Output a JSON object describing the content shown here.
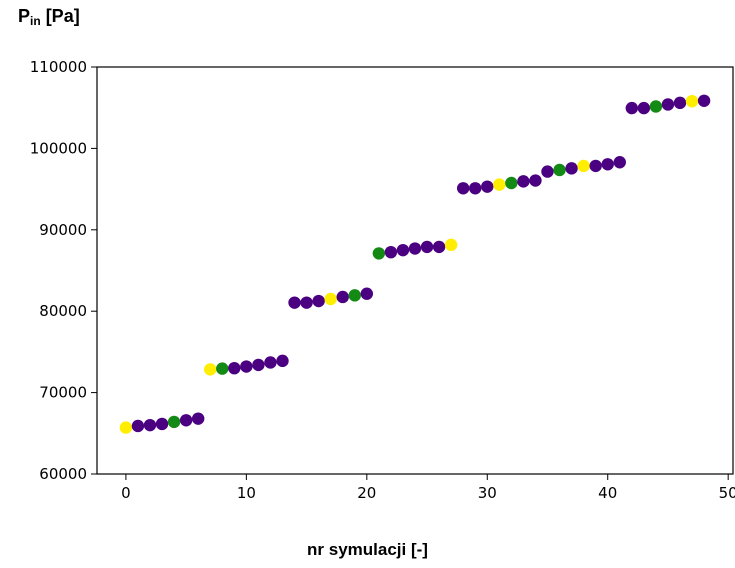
{
  "chart_data": {
    "type": "scatter",
    "ylabel_main": "P",
    "ylabel_sub": "in",
    "ylabel_unit": " [Pa]",
    "xlabel": "nr symulacji [-]",
    "xlim": [
      -2.4,
      50.4
    ],
    "ylim": [
      60000,
      110000
    ],
    "xticks": [
      "0",
      "10",
      "20",
      "30",
      "40",
      "50"
    ],
    "yticks": [
      "60000",
      "70000",
      "80000",
      "90000",
      "100000",
      "110000"
    ],
    "colors": {
      "yellow": "#ffee00",
      "green": "#138a13",
      "purple": "#4b0082"
    },
    "points": [
      {
        "x": 0,
        "y": 65700,
        "c": "yellow"
      },
      {
        "x": 1,
        "y": 65900,
        "c": "purple"
      },
      {
        "x": 2,
        "y": 66000,
        "c": "purple"
      },
      {
        "x": 3,
        "y": 66150,
        "c": "purple"
      },
      {
        "x": 4,
        "y": 66400,
        "c": "green"
      },
      {
        "x": 5,
        "y": 66600,
        "c": "purple"
      },
      {
        "x": 6,
        "y": 66800,
        "c": "purple"
      },
      {
        "x": 7,
        "y": 72850,
        "c": "yellow"
      },
      {
        "x": 8,
        "y": 72950,
        "c": "green"
      },
      {
        "x": 9,
        "y": 73000,
        "c": "purple"
      },
      {
        "x": 10,
        "y": 73200,
        "c": "purple"
      },
      {
        "x": 11,
        "y": 73400,
        "c": "purple"
      },
      {
        "x": 12,
        "y": 73700,
        "c": "purple"
      },
      {
        "x": 13,
        "y": 73900,
        "c": "purple"
      },
      {
        "x": 14,
        "y": 81050,
        "c": "purple"
      },
      {
        "x": 15,
        "y": 81050,
        "c": "purple"
      },
      {
        "x": 16,
        "y": 81250,
        "c": "purple"
      },
      {
        "x": 17,
        "y": 81500,
        "c": "yellow"
      },
      {
        "x": 18,
        "y": 81750,
        "c": "purple"
      },
      {
        "x": 19,
        "y": 81950,
        "c": "green"
      },
      {
        "x": 20,
        "y": 82150,
        "c": "purple"
      },
      {
        "x": 21,
        "y": 87100,
        "c": "green"
      },
      {
        "x": 22,
        "y": 87250,
        "c": "purple"
      },
      {
        "x": 23,
        "y": 87500,
        "c": "purple"
      },
      {
        "x": 24,
        "y": 87700,
        "c": "purple"
      },
      {
        "x": 25,
        "y": 87900,
        "c": "purple"
      },
      {
        "x": 26,
        "y": 87900,
        "c": "purple"
      },
      {
        "x": 27,
        "y": 88150,
        "c": "yellow"
      },
      {
        "x": 28,
        "y": 95100,
        "c": "purple"
      },
      {
        "x": 29,
        "y": 95100,
        "c": "purple"
      },
      {
        "x": 30,
        "y": 95300,
        "c": "purple"
      },
      {
        "x": 31,
        "y": 95550,
        "c": "yellow"
      },
      {
        "x": 32,
        "y": 95750,
        "c": "green"
      },
      {
        "x": 33,
        "y": 95950,
        "c": "purple"
      },
      {
        "x": 34,
        "y": 96050,
        "c": "purple"
      },
      {
        "x": 35,
        "y": 97150,
        "c": "purple"
      },
      {
        "x": 36,
        "y": 97350,
        "c": "green"
      },
      {
        "x": 37,
        "y": 97550,
        "c": "purple"
      },
      {
        "x": 38,
        "y": 97850,
        "c": "yellow"
      },
      {
        "x": 39,
        "y": 97850,
        "c": "purple"
      },
      {
        "x": 40,
        "y": 98050,
        "c": "purple"
      },
      {
        "x": 41,
        "y": 98300,
        "c": "purple"
      },
      {
        "x": 42,
        "y": 104950,
        "c": "purple"
      },
      {
        "x": 43,
        "y": 104950,
        "c": "purple"
      },
      {
        "x": 44,
        "y": 105150,
        "c": "green"
      },
      {
        "x": 45,
        "y": 105400,
        "c": "purple"
      },
      {
        "x": 46,
        "y": 105600,
        "c": "purple"
      },
      {
        "x": 47,
        "y": 105800,
        "c": "yellow"
      },
      {
        "x": 48,
        "y": 105850,
        "c": "purple"
      }
    ]
  }
}
